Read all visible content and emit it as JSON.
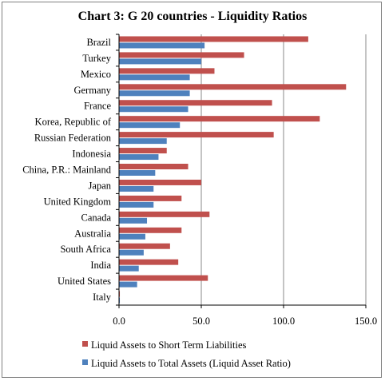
{
  "chart_data": {
    "type": "bar",
    "orientation": "horizontal",
    "title": "Chart 3: G 20 countries - Liquidity Ratios",
    "categories": [
      "Brazil",
      "Turkey",
      "Mexico",
      "Germany",
      "France",
      "Korea, Republic of",
      "Russian Federation",
      "Indonesia",
      "China, P.R.: Mainland",
      "Japan",
      "United Kingdom",
      "Canada",
      "Australia",
      "South Africa",
      "India",
      "United States",
      "Italy"
    ],
    "series": [
      {
        "name": "Liquid Assets to Short Term Liabilities",
        "color": "#c0504d",
        "values": [
          115,
          76,
          58,
          138,
          93,
          122,
          94,
          29,
          42,
          50,
          38,
          55,
          38,
          31,
          36,
          54,
          0.5
        ]
      },
      {
        "name": "Liquid Assets to Total Assets (Liquid Asset Ratio)",
        "color": "#4f81bd",
        "values": [
          52,
          50,
          43,
          43,
          42,
          37,
          29,
          24,
          22,
          21,
          21,
          17,
          16,
          15,
          12,
          11,
          0.5
        ]
      }
    ],
    "xlim": [
      0,
      150
    ],
    "xticks": [
      "0.0",
      "50.0",
      "100.0",
      "150.0"
    ],
    "xtick_values": [
      0,
      50,
      100,
      150
    ],
    "grid": "vertical",
    "legend_position": "bottom"
  }
}
